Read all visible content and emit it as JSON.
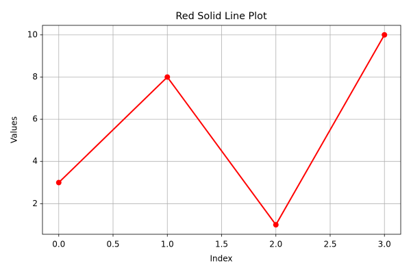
{
  "chart_data": {
    "type": "line",
    "title": "Red Solid Line Plot",
    "xlabel": "Index",
    "ylabel": "Values",
    "x": [
      0,
      1,
      2,
      3
    ],
    "series": [
      {
        "name": "Values",
        "color": "red",
        "values": [
          3,
          8,
          1,
          10
        ]
      }
    ],
    "xlim": [
      -0.15,
      3.15
    ],
    "xticks": [
      {
        "value": 0,
        "label": "0.0"
      },
      {
        "value": 0.5,
        "label": "0.5"
      },
      {
        "value": 1,
        "label": "1.0"
      },
      {
        "value": 1.5,
        "label": "1.5"
      },
      {
        "value": 2,
        "label": "2.0"
      },
      {
        "value": 2.5,
        "label": "2.5"
      },
      {
        "value": 3,
        "label": "3.0"
      }
    ],
    "ylim": [
      0.55,
      10.45
    ],
    "yticks": [
      2,
      4,
      6,
      8,
      10
    ],
    "grid": true
  }
}
